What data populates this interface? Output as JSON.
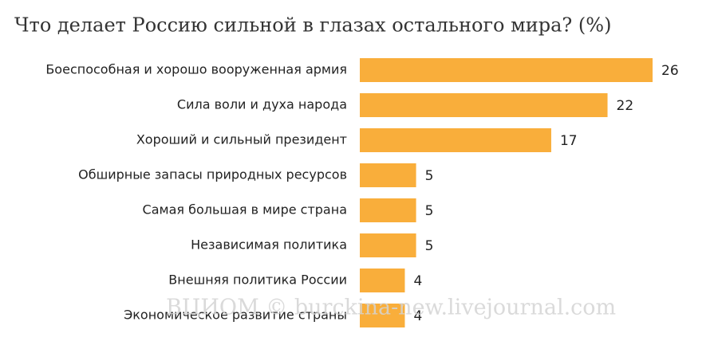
{
  "chart_data": {
    "type": "bar",
    "orientation": "horizontal",
    "title": "Что делает Россию сильной в глазах остального мира? (%)",
    "categories": [
      "Боеспособная и хорошо вооруженная армия",
      "Сила воли и духа народа",
      "Хороший и сильный президент",
      "Обширные запасы природных ресурсов",
      "Самая большая в мире страна",
      "Независимая политика",
      "Внешняя политика России",
      "Экономическое развитие страны"
    ],
    "values": [
      26,
      22,
      17,
      5,
      5,
      5,
      4,
      4
    ],
    "color": "#f9ae3b",
    "watermark": "ВЦИОМ © burckina-new.livejournal.com"
  }
}
